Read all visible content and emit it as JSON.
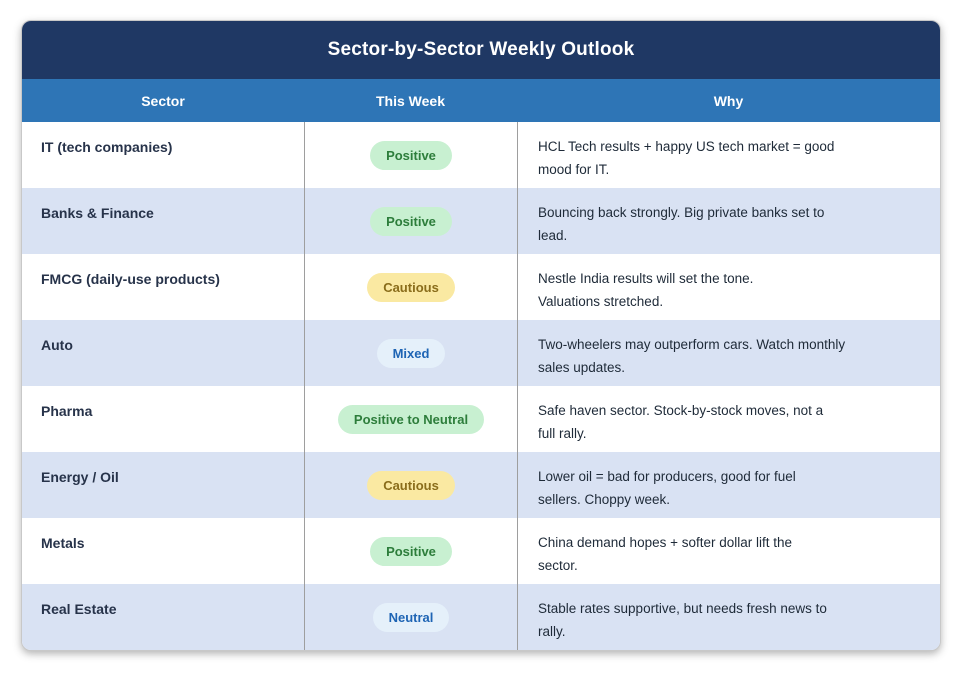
{
  "title": "Sector-by-Sector Weekly Outlook",
  "table": {
    "columns": [
      "Sector",
      "This Week",
      "Why"
    ],
    "rows": [
      {
        "sector": "IT (tech companies)",
        "badge": "Positive",
        "badge_type": "positive",
        "why": "HCL Tech results + happy US tech market = good mood for IT.",
        "why_lines": [
          "HCL Tech results + happy US tech market = good",
          "mood for IT."
        ]
      },
      {
        "sector": "Banks & Finance",
        "badge": "Positive",
        "badge_type": "positive",
        "why": "Bouncing back strongly. Big private banks set to lead.",
        "why_lines": [
          "Bouncing back strongly. Big private banks set to",
          "lead."
        ]
      },
      {
        "sector": "FMCG (daily-use products)",
        "badge": "Cautious",
        "badge_type": "cautious",
        "why": "Nestle India results will set the tone. Valuations stretched.",
        "why_lines": [
          "Nestle India results will set the tone.",
          "Valuations stretched."
        ]
      },
      {
        "sector": "Auto",
        "badge": "Mixed",
        "badge_type": "neutral",
        "why": "Two-wheelers may outperform cars. Watch monthly sales updates.",
        "why_lines": [
          "Two-wheelers may outperform cars. Watch monthly",
          "sales updates."
        ]
      },
      {
        "sector": "Pharma",
        "badge": "Positive to Neutral",
        "badge_type": "positive",
        "why": "Safe haven sector. Stock-by-stock moves, not a full rally.",
        "why_lines": [
          "Safe haven sector. Stock-by-stock moves, not a",
          "full rally."
        ]
      },
      {
        "sector": "Energy / Oil",
        "badge": "Cautious",
        "badge_type": "cautious",
        "why": "Lower oil = bad for producers, good for fuel sellers. Choppy week.",
        "why_lines": [
          "Lower oil = bad for producers, good for fuel",
          "sellers. Choppy week."
        ]
      },
      {
        "sector": "Metals",
        "badge": "Positive",
        "badge_type": "positive",
        "why": "China demand hopes + softer dollar lift the sector.",
        "why_lines": [
          "China demand hopes + softer dollar lift the",
          "sector."
        ]
      },
      {
        "sector": "Real Estate",
        "badge": "Neutral",
        "badge_type": "neutral",
        "why": "Stable rates supportive, but needs fresh news to rally.",
        "why_lines": [
          "Stable rates supportive, but needs fresh news to",
          "rally."
        ]
      }
    ]
  },
  "badge_styles": {
    "positive": {
      "bg": "#C8F0D1",
      "text": "#2D7D3B"
    },
    "cautious": {
      "bg": "#FAE9A2",
      "text": "#8A6D1B"
    },
    "neutral": {
      "bg": "#E5F0FA",
      "text": "#1E64B4"
    }
  },
  "colors": {
    "title_bar": "#1F3864",
    "header_row": "#2E75B6",
    "alt_row": "#D9E2F3",
    "divider": "#9e9e9e"
  },
  "chart_data": {
    "type": "table",
    "title": "Sector-by-Sector Weekly Outlook",
    "headers": [
      "Sector",
      "This Week",
      "Why"
    ],
    "rows": [
      [
        "IT (tech companies)",
        "Positive",
        "HCL Tech results + happy US tech market = good mood for IT."
      ],
      [
        "Banks & Finance",
        "Positive",
        "Bouncing back strongly. Big private banks set to lead."
      ],
      [
        "FMCG (daily-use products)",
        "Cautious",
        "Nestle India results will set the tone. Valuations stretched."
      ],
      [
        "Auto",
        "Mixed",
        "Two-wheelers may outperform cars. Watch monthly sales updates."
      ],
      [
        "Pharma",
        "Positive to Neutral",
        "Safe haven sector. Stock-by-stock moves, not a full rally."
      ],
      [
        "Energy / Oil",
        "Cautious",
        "Lower oil = bad for producers, good for fuel sellers. Choppy week."
      ],
      [
        "Metals",
        "Positive",
        "China demand hopes + softer dollar lift the sector."
      ],
      [
        "Real Estate",
        "Neutral",
        "Stable rates supportive, but needs fresh news to rally."
      ]
    ],
    "layout_hints": {
      "striped_rows": true,
      "badge_column": 1,
      "badge_color_legend": {
        "Positive": "green",
        "Cautious": "yellow",
        "Mixed": "blue",
        "Neutral": "blue"
      }
    }
  }
}
